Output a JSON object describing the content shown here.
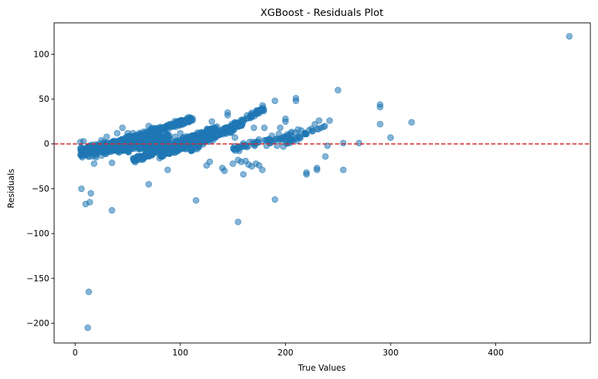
{
  "chart_data": {
    "type": "scatter",
    "title": "XGBoost - Residuals Plot",
    "xlabel": "True Values",
    "ylabel": "Residuals",
    "xlim": [
      -20,
      490
    ],
    "ylim": [
      -222,
      135
    ],
    "xticks": [
      0,
      100,
      200,
      300,
      400
    ],
    "yticks": [
      100,
      50,
      0,
      -50,
      -100,
      -150,
      -200
    ],
    "ytick_labels": [
      "100",
      "50",
      "0",
      "−50",
      "−100",
      "−150",
      "−200"
    ],
    "grid": false,
    "reference_line": {
      "y": 0,
      "style": "dashed",
      "color": "#d62728"
    },
    "point_color": "#1f77b4",
    "point_alpha": 0.55,
    "points": [
      [
        470,
        120
      ],
      [
        320,
        24
      ],
      [
        300,
        7
      ],
      [
        290,
        44
      ],
      [
        290,
        41
      ],
      [
        290,
        22
      ],
      [
        270,
        1
      ],
      [
        255,
        1
      ],
      [
        255,
        -29
      ],
      [
        250,
        60
      ],
      [
        242,
        26
      ],
      [
        240,
        -2
      ],
      [
        238,
        -14
      ],
      [
        232,
        26
      ],
      [
        230,
        -27
      ],
      [
        230,
        -29
      ],
      [
        228,
        22
      ],
      [
        225,
        17
      ],
      [
        220,
        -32
      ],
      [
        220,
        -34
      ],
      [
        215,
        15
      ],
      [
        212,
        16
      ],
      [
        210,
        51
      ],
      [
        210,
        48
      ],
      [
        205,
        12
      ],
      [
        205,
        4
      ],
      [
        202,
        1
      ],
      [
        200,
        28
      ],
      [
        200,
        25
      ],
      [
        200,
        4
      ],
      [
        198,
        -3
      ],
      [
        195,
        18
      ],
      [
        192,
        -2
      ],
      [
        190,
        48
      ],
      [
        190,
        -62
      ],
      [
        188,
        3
      ],
      [
        185,
        1
      ],
      [
        182,
        -2
      ],
      [
        180,
        18
      ],
      [
        178,
        -29
      ],
      [
        175,
        -24
      ],
      [
        172,
        -22
      ],
      [
        170,
        18
      ],
      [
        168,
        -25
      ],
      [
        165,
        -23
      ],
      [
        162,
        -19
      ],
      [
        160,
        -34
      ],
      [
        158,
        -20
      ],
      [
        155,
        -87
      ],
      [
        155,
        -18
      ],
      [
        152,
        7
      ],
      [
        150,
        -22
      ],
      [
        145,
        35
      ],
      [
        145,
        32
      ],
      [
        140,
        -27
      ],
      [
        142,
        -30
      ],
      [
        130,
        25
      ],
      [
        128,
        -20
      ],
      [
        125,
        -24
      ],
      [
        120,
        10
      ],
      [
        115,
        -63
      ],
      [
        100,
        12
      ],
      [
        95,
        8
      ],
      [
        90,
        6
      ],
      [
        88,
        -29
      ],
      [
        85,
        -5
      ],
      [
        80,
        12
      ],
      [
        75,
        15
      ],
      [
        70,
        20
      ],
      [
        70,
        -45
      ],
      [
        65,
        10
      ],
      [
        60,
        8
      ],
      [
        55,
        12
      ],
      [
        50,
        12
      ],
      [
        45,
        18
      ],
      [
        40,
        12
      ],
      [
        35,
        -74
      ],
      [
        35,
        -21
      ],
      [
        30,
        8
      ],
      [
        25,
        4
      ],
      [
        20,
        -15
      ],
      [
        18,
        -22
      ],
      [
        15,
        -55
      ],
      [
        14,
        -65
      ],
      [
        13,
        -165
      ],
      [
        12,
        -205
      ],
      [
        10,
        -67
      ],
      [
        6,
        -50
      ],
      [
        5,
        2
      ],
      [
        5,
        -5
      ],
      [
        8,
        3
      ]
    ],
    "clusters": [
      {
        "x_from": 5,
        "x_to": 90,
        "y_from": -9,
        "y_to": 5,
        "count": 600,
        "spread": 9
      },
      {
        "x_from": 30,
        "x_to": 112,
        "y_from": -3,
        "y_to": 28,
        "count": 320,
        "spread": 5
      },
      {
        "x_from": 55,
        "x_to": 135,
        "y_from": -18,
        "y_to": 18,
        "count": 260,
        "spread": 5
      },
      {
        "x_from": 80,
        "x_to": 160,
        "y_from": -14,
        "y_to": 22,
        "count": 180,
        "spread": 5
      },
      {
        "x_from": 110,
        "x_to": 180,
        "y_from": -6,
        "y_to": 40,
        "count": 130,
        "spread": 5
      },
      {
        "x_from": 150,
        "x_to": 210,
        "y_from": -6,
        "y_to": 12,
        "count": 60,
        "spread": 5
      },
      {
        "x_from": 200,
        "x_to": 238,
        "y_from": 0,
        "y_to": 22,
        "count": 30,
        "spread": 4
      }
    ]
  }
}
